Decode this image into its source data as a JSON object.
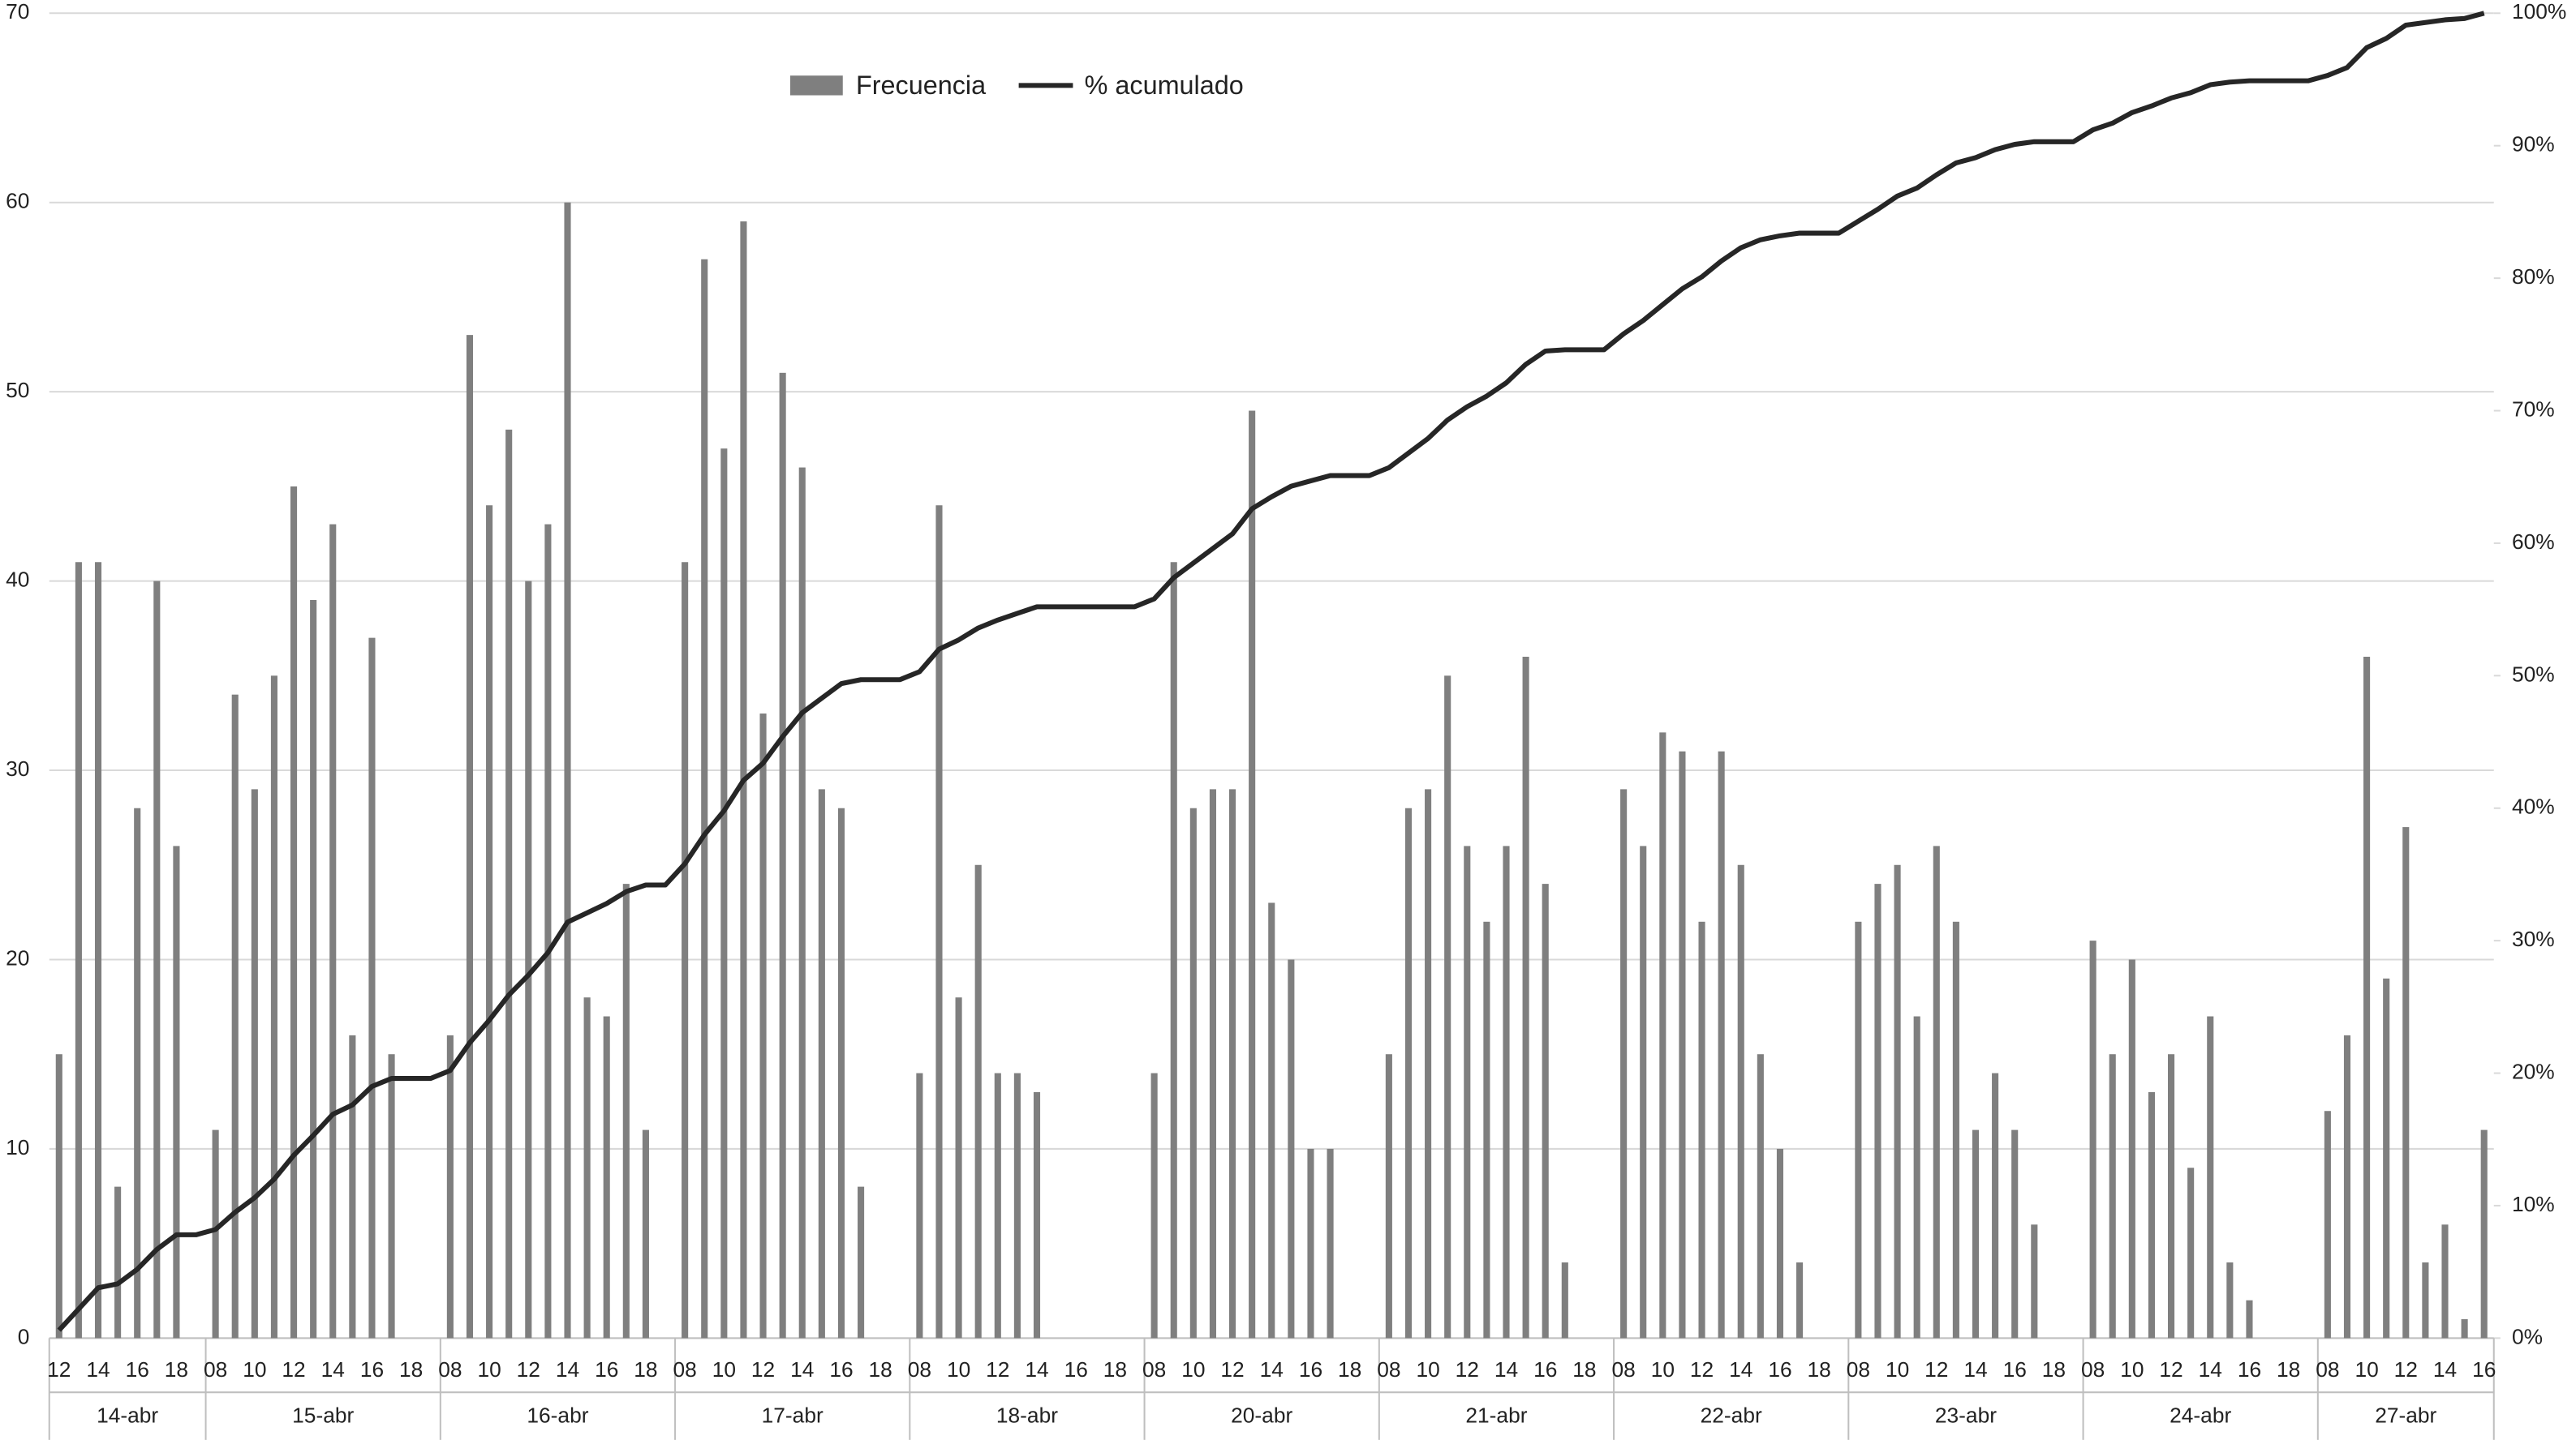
{
  "chart_data": {
    "type": "bar",
    "legend": "top",
    "grid": true,
    "ylim": [
      0,
      70
    ],
    "yticks": [
      0,
      10,
      20,
      30,
      40,
      50,
      60,
      70
    ],
    "y2lim": [
      0,
      100
    ],
    "y2ticks": [
      {
        "value": 0,
        "label": "0%"
      },
      {
        "value": 10,
        "label": "10%"
      },
      {
        "value": 20,
        "label": "20%"
      },
      {
        "value": 30,
        "label": "30%"
      },
      {
        "value": 40,
        "label": "40%"
      },
      {
        "value": 50,
        "label": "50%"
      },
      {
        "value": 60,
        "label": "60%"
      },
      {
        "value": 70,
        "label": "70%"
      },
      {
        "value": 80,
        "label": "80%"
      },
      {
        "value": 90,
        "label": "90%"
      },
      {
        "value": 100,
        "label": "100%"
      }
    ],
    "groups": [
      {
        "label": "14-abr",
        "categories": [
          "12",
          null,
          "14",
          null,
          "16",
          null,
          "18",
          null
        ]
      },
      {
        "label": "15-abr",
        "categories": [
          "08",
          null,
          "10",
          null,
          "12",
          null,
          "14",
          null,
          "16",
          null,
          "18",
          null
        ]
      },
      {
        "label": "16-abr",
        "categories": [
          "08",
          null,
          "10",
          null,
          "12",
          null,
          "14",
          null,
          "16",
          null,
          "18",
          null
        ]
      },
      {
        "label": "17-abr",
        "categories": [
          "08",
          null,
          "10",
          null,
          "12",
          null,
          "14",
          null,
          "16",
          null,
          "18",
          null
        ]
      },
      {
        "label": "18-abr",
        "categories": [
          "08",
          null,
          "10",
          null,
          "12",
          null,
          "14",
          null,
          "16",
          null,
          "18",
          null
        ]
      },
      {
        "label": "20-abr",
        "categories": [
          "08",
          null,
          "10",
          null,
          "12",
          null,
          "14",
          null,
          "16",
          null,
          "18",
          null
        ]
      },
      {
        "label": "21-abr",
        "categories": [
          "08",
          null,
          "10",
          null,
          "12",
          null,
          "14",
          null,
          "16",
          null,
          "18",
          null
        ]
      },
      {
        "label": "22-abr",
        "categories": [
          "08",
          null,
          "10",
          null,
          "12",
          null,
          "14",
          null,
          "16",
          null,
          "18",
          null
        ]
      },
      {
        "label": "23-abr",
        "categories": [
          "08",
          null,
          "10",
          null,
          "12",
          null,
          "14",
          null,
          "16",
          null,
          "18",
          null
        ]
      },
      {
        "label": "24-abr",
        "categories": [
          "08",
          null,
          "10",
          null,
          "12",
          null,
          "14",
          null,
          "16",
          null,
          "18",
          null
        ]
      },
      {
        "label": "27-abr",
        "categories": [
          "08",
          null,
          "10",
          null,
          "12",
          null,
          "14",
          null,
          "16"
        ]
      }
    ],
    "series": [
      {
        "name": "Frecuencia",
        "type": "bar",
        "color": "#7f7f7f",
        "values": [
          15,
          41,
          41,
          8,
          28,
          40,
          26,
          0,
          11,
          34,
          29,
          35,
          45,
          39,
          43,
          16,
          37,
          15,
          0,
          0,
          16,
          53,
          44,
          48,
          40,
          43,
          60,
          18,
          17,
          24,
          11,
          0,
          41,
          57,
          47,
          59,
          33,
          51,
          46,
          29,
          28,
          8,
          0,
          0,
          14,
          44,
          18,
          25,
          14,
          14,
          13,
          0,
          0,
          0,
          0,
          0,
          14,
          41,
          28,
          29,
          29,
          49,
          23,
          20,
          10,
          10,
          0,
          0,
          15,
          28,
          29,
          35,
          26,
          22,
          26,
          36,
          24,
          4,
          0,
          0,
          29,
          26,
          32,
          31,
          22,
          31,
          25,
          15,
          10,
          4,
          0,
          0,
          22,
          24,
          25,
          17,
          26,
          22,
          11,
          14,
          11,
          6,
          0,
          0,
          21,
          15,
          20,
          13,
          15,
          9,
          17,
          4,
          2,
          0,
          0,
          0,
          12,
          16,
          36,
          19,
          27,
          4,
          6,
          1,
          11
        ]
      },
      {
        "name": "% acumulado",
        "type": "line",
        "axis": "y2",
        "color": "#262626",
        "values": [
          0.6,
          2.2,
          3.8,
          4.1,
          5.2,
          6.7,
          7.8,
          7.8,
          8.2,
          9.5,
          10.6,
          12.0,
          13.8,
          15.3,
          16.9,
          17.6,
          19.0,
          19.6,
          19.6,
          19.6,
          20.2,
          22.3,
          24.0,
          25.9,
          27.4,
          29.1,
          31.4,
          32.1,
          32.8,
          33.7,
          34.2,
          34.2,
          35.8,
          38.0,
          39.8,
          42.1,
          43.4,
          45.4,
          47.2,
          48.3,
          49.4,
          49.7,
          49.7,
          49.7,
          50.3,
          52.0,
          52.7,
          53.6,
          54.2,
          54.7,
          55.2,
          55.2,
          55.2,
          55.2,
          55.2,
          55.2,
          55.8,
          57.4,
          58.5,
          59.6,
          60.7,
          62.6,
          63.5,
          64.3,
          64.7,
          65.1,
          65.1,
          65.1,
          65.7,
          66.8,
          67.9,
          69.3,
          70.3,
          71.1,
          72.1,
          73.5,
          74.5,
          74.6,
          74.6,
          74.6,
          75.8,
          76.8,
          78.0,
          79.2,
          80.1,
          81.3,
          82.3,
          82.9,
          83.2,
          83.4,
          83.4,
          83.4,
          84.3,
          85.2,
          86.2,
          86.8,
          87.8,
          88.7,
          89.1,
          89.7,
          90.1,
          90.3,
          90.3,
          90.3,
          91.2,
          91.7,
          92.5,
          93.0,
          93.6,
          94.0,
          94.6,
          94.8,
          94.9,
          94.9,
          94.9,
          94.9,
          95.3,
          95.9,
          97.4,
          98.1,
          99.1,
          99.3,
          99.5,
          99.6,
          100
        ]
      }
    ]
  }
}
